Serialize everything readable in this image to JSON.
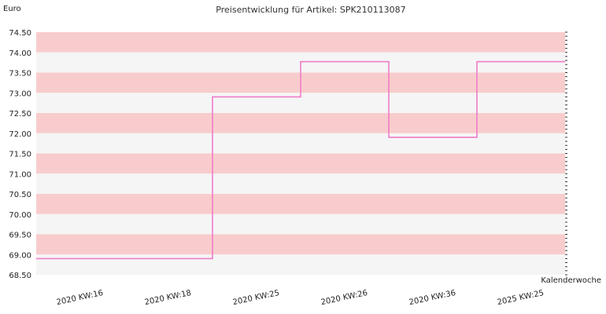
{
  "chart_data": {
    "type": "line",
    "title": "Preisentwicklung für Artikel: SPK210113087",
    "ylabel": "Euro",
    "xlabel": "Kalenderwoche",
    "ylim": [
      68.5,
      74.5
    ],
    "yticks": [
      "74.50",
      "74.00",
      "73.50",
      "73.00",
      "72.50",
      "72.00",
      "71.50",
      "71.00",
      "70.50",
      "70.00",
      "69.50",
      "69.00",
      "68.50"
    ],
    "categories": [
      "2020 KW:16",
      "2020 KW:18",
      "2020 KW:25",
      "2020 KW:26",
      "2020 KW:36",
      "2025 KW:25"
    ],
    "series": [
      {
        "values": [
          68.9,
          68.9,
          72.9,
          73.77,
          71.9,
          73.77
        ]
      }
    ],
    "step": true,
    "band_colors": [
      "#f8cccc",
      "#f5f5f5"
    ],
    "line_color": "#f07cc8"
  }
}
